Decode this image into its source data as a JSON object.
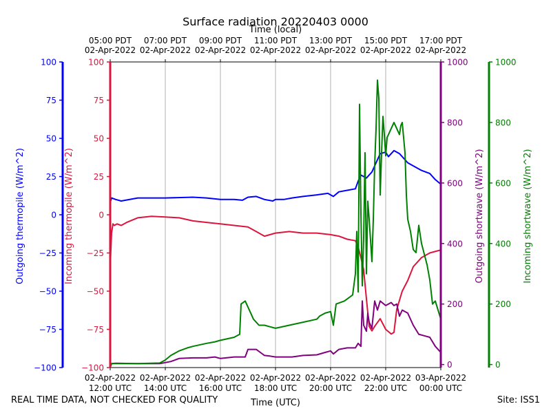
{
  "chart_data": {
    "type": "line",
    "title": "Surface radiation 20220403 0000",
    "top_axis_label": "Time (local)",
    "xlabel": "Time (UTC)",
    "footer_left": "REAL TIME DATA, NOT CHECKED FOR QUALITY",
    "footer_right": "Site: ISS1",
    "x_hours_utc_range": [
      12,
      24
    ],
    "bottom_ticks": [
      {
        "date": "02-Apr-2022",
        "time": "12:00 UTC"
      },
      {
        "date": "02-Apr-2022",
        "time": "14:00 UTC"
      },
      {
        "date": "02-Apr-2022",
        "time": "16:00 UTC"
      },
      {
        "date": "02-Apr-2022",
        "time": "18:00 UTC"
      },
      {
        "date": "02-Apr-2022",
        "time": "20:00 UTC"
      },
      {
        "date": "02-Apr-2022",
        "time": "22:00 UTC"
      },
      {
        "date": "03-Apr-2022",
        "time": "00:00 UTC"
      }
    ],
    "top_ticks": [
      {
        "time": "05:00 PDT",
        "date": "02-Apr-2022"
      },
      {
        "time": "07:00 PDT",
        "date": "02-Apr-2022"
      },
      {
        "time": "09:00 PDT",
        "date": "02-Apr-2022"
      },
      {
        "time": "11:00 PDT",
        "date": "02-Apr-2022"
      },
      {
        "time": "13:00 PDT",
        "date": "02-Apr-2022"
      },
      {
        "time": "15:00 PDT",
        "date": "02-Apr-2022"
      },
      {
        "time": "17:00 PDT",
        "date": "02-Apr-2022"
      }
    ],
    "axes": [
      {
        "id": "out_thermo",
        "label": "Outgoing thermopile (W/m^2)",
        "color": "#0000ff",
        "ylim": [
          -100,
          100
        ],
        "ticks": [
          -100,
          -75,
          -50,
          -25,
          0,
          25,
          50,
          75,
          100
        ],
        "tick_labels": [
          "−100",
          "−75",
          "−50",
          "−25",
          "0",
          "25",
          "50",
          "75",
          "100"
        ]
      },
      {
        "id": "in_thermo",
        "label": "Incoming thermopile (W/m^2)",
        "color": "#dc143c",
        "ylim": [
          -100,
          100
        ],
        "ticks": [
          -100,
          -75,
          -50,
          -25,
          0,
          25,
          50,
          75,
          100
        ],
        "tick_labels": [
          "−100",
          "−75",
          "−50",
          "−25",
          "0",
          "25",
          "50",
          "75",
          "100"
        ]
      },
      {
        "id": "out_sw",
        "label": "Outgoing shortwave (W/m^2)",
        "color": "#800080",
        "ylim": [
          -10,
          1000
        ],
        "ticks": [
          0,
          200,
          400,
          600,
          800,
          1000
        ],
        "tick_labels": [
          "0",
          "200",
          "400",
          "600",
          "800",
          "1000"
        ]
      },
      {
        "id": "in_sw",
        "label": "Incoming shortwave (W/m^2)",
        "color": "#008000",
        "ylim": [
          -10,
          1000
        ],
        "ticks": [
          0,
          200,
          400,
          600,
          800,
          1000
        ],
        "tick_labels": [
          "0",
          "200",
          "400",
          "600",
          "800",
          "1000"
        ]
      }
    ],
    "series": [
      {
        "name": "Outgoing thermopile",
        "axis": "out_thermo",
        "color": "#0000ff",
        "x": [
          12.0,
          12.05,
          12.2,
          12.4,
          13.0,
          14.0,
          15.0,
          15.5,
          16.0,
          16.5,
          16.8,
          17.0,
          17.3,
          17.6,
          17.9,
          18.0,
          18.3,
          18.6,
          19.0,
          19.5,
          19.9,
          20.1,
          20.3,
          20.6,
          20.9,
          21.0,
          21.1,
          21.3,
          21.5,
          21.7,
          21.8,
          22.0,
          22.1,
          22.3,
          22.5,
          22.8,
          23.0,
          23.3,
          23.6,
          23.8,
          24.0
        ],
        "y": [
          8,
          11,
          10,
          9,
          11,
          11,
          11.5,
          11,
          10,
          10,
          9.5,
          11.5,
          12,
          10,
          9,
          10,
          10,
          11,
          12,
          13,
          14,
          12,
          15,
          16,
          17,
          22,
          26,
          24,
          28,
          36,
          40,
          41,
          38,
          42,
          40,
          34,
          32,
          29,
          27,
          23,
          20
        ]
      },
      {
        "name": "Incoming thermopile",
        "axis": "in_thermo",
        "color": "#dc143c",
        "x": [
          12.0,
          12.02,
          12.05,
          12.1,
          12.15,
          12.25,
          12.4,
          12.6,
          13.0,
          13.5,
          14.0,
          14.5,
          15.0,
          15.5,
          16.0,
          16.5,
          17.0,
          17.3,
          17.6,
          18.0,
          18.5,
          19.0,
          19.5,
          20.0,
          20.3,
          20.6,
          20.9,
          21.0,
          21.1,
          21.2,
          21.3,
          21.4,
          21.5,
          21.6,
          21.8,
          22.0,
          22.2,
          22.3,
          22.4,
          22.6,
          22.8,
          23.0,
          23.3,
          23.6,
          24.0
        ],
        "y": [
          -35,
          -25,
          -12,
          -6,
          -7,
          -6,
          -7,
          -5,
          -2,
          -1,
          -1.5,
          -2,
          -4,
          -5,
          -6,
          -7,
          -8,
          -11,
          -14,
          -12,
          -11,
          -12,
          -12,
          -13,
          -14,
          -16,
          -17,
          -21,
          -28,
          -36,
          -55,
          -73,
          -76,
          -73,
          -68,
          -75,
          -78,
          -77,
          -62,
          -50,
          -43,
          -34,
          -28,
          -25,
          -23
        ]
      },
      {
        "name": "Outgoing shortwave",
        "axis": "out_sw",
        "color": "#800080",
        "x": [
          12.0,
          12.05,
          12.2,
          13.0,
          13.8,
          14.2,
          14.5,
          15.0,
          15.5,
          15.8,
          16.0,
          16.5,
          16.9,
          17.0,
          17.3,
          17.6,
          17.8,
          18.0,
          18.3,
          18.6,
          19.0,
          19.5,
          19.8,
          20.0,
          20.1,
          20.3,
          20.6,
          20.9,
          21.0,
          21.1,
          21.15,
          21.2,
          21.3,
          21.35,
          21.4,
          21.5,
          21.6,
          21.7,
          21.8,
          22.0,
          22.2,
          22.3,
          22.4,
          22.5,
          22.6,
          22.8,
          23.0,
          23.2,
          23.4,
          23.6,
          23.8,
          24.0
        ],
        "y": [
          -10,
          3,
          4,
          3,
          3,
          10,
          20,
          22,
          22,
          25,
          20,
          25,
          25,
          50,
          50,
          30,
          28,
          25,
          25,
          25,
          30,
          32,
          40,
          45,
          35,
          50,
          55,
          55,
          70,
          60,
          210,
          130,
          110,
          170,
          140,
          120,
          210,
          180,
          210,
          195,
          205,
          195,
          200,
          160,
          180,
          170,
          130,
          100,
          95,
          90,
          60,
          40
        ]
      },
      {
        "name": "Incoming shortwave",
        "axis": "in_sw",
        "color": "#008000",
        "x": [
          12.0,
          12.05,
          12.5,
          13.0,
          13.8,
          14.0,
          14.2,
          14.5,
          14.8,
          15.0,
          15.5,
          15.8,
          16.0,
          16.5,
          16.7,
          16.75,
          16.9,
          17.0,
          17.2,
          17.4,
          17.6,
          17.8,
          18.0,
          18.5,
          19.0,
          19.5,
          19.6,
          19.8,
          20.0,
          20.1,
          20.2,
          20.5,
          20.8,
          20.9,
          20.95,
          21.0,
          21.05,
          21.1,
          21.15,
          21.2,
          21.25,
          21.3,
          21.35,
          21.4,
          21.5,
          21.55,
          21.6,
          21.65,
          21.7,
          21.75,
          21.8,
          21.85,
          21.9,
          21.95,
          22.0,
          22.05,
          22.1,
          22.2,
          22.3,
          22.4,
          22.5,
          22.55,
          22.6,
          22.7,
          22.75,
          22.8,
          22.9,
          23.0,
          23.1,
          23.2,
          23.3,
          23.5,
          23.6,
          23.7,
          23.8,
          24.0
        ],
        "y": [
          -10,
          3,
          3,
          3,
          5,
          15,
          30,
          45,
          55,
          60,
          70,
          75,
          80,
          90,
          100,
          200,
          210,
          190,
          150,
          130,
          130,
          125,
          120,
          130,
          140,
          150,
          160,
          170,
          175,
          130,
          200,
          210,
          230,
          300,
          440,
          240,
          860,
          500,
          260,
          420,
          700,
          300,
          540,
          480,
          340,
          480,
          660,
          780,
          940,
          880,
          560,
          700,
          820,
          760,
          690,
          750,
          760,
          780,
          800,
          780,
          760,
          790,
          800,
          700,
          560,
          480,
          440,
          380,
          370,
          460,
          400,
          330,
          280,
          200,
          210,
          150
        ]
      }
    ]
  }
}
